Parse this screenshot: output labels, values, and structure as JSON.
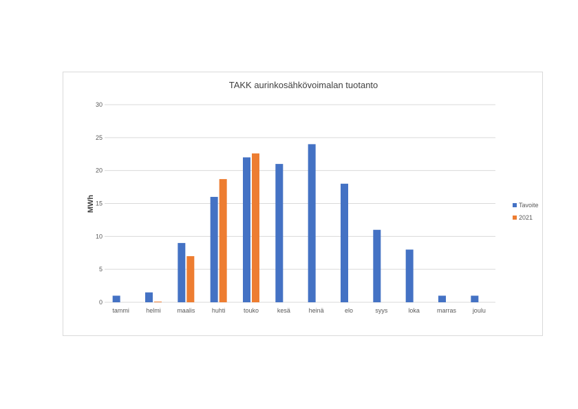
{
  "chart_data": {
    "type": "bar",
    "title": "TAKK aurinkosähkövoimalan tuotanto",
    "xlabel": "",
    "ylabel": "MWh",
    "ylim": [
      0,
      30
    ],
    "yticks": [
      0,
      5,
      10,
      15,
      20,
      25,
      30
    ],
    "grid": true,
    "legend_position": "right",
    "categories": [
      "tammi",
      "helmi",
      "maalis",
      "huhti",
      "touko",
      "kesä",
      "heinä",
      "elo",
      "syys",
      "loka",
      "marras",
      "joulu"
    ],
    "series": [
      {
        "name": "Tavoite",
        "color": "#4472c4",
        "values": [
          1,
          1.5,
          9,
          16,
          22,
          21,
          24,
          18,
          11,
          8,
          1,
          1
        ]
      },
      {
        "name": "2021",
        "color": "#ed7d31",
        "values": [
          0,
          0.1,
          7,
          18.7,
          22.6,
          null,
          null,
          null,
          null,
          null,
          null,
          null
        ]
      }
    ]
  }
}
